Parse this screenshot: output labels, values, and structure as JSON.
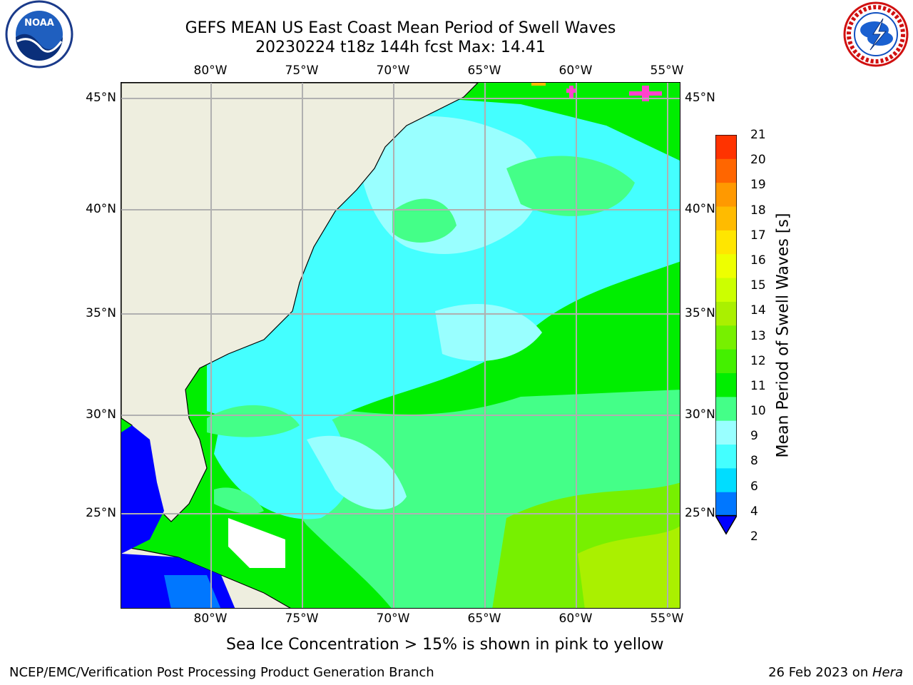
{
  "title_line1": "GEFS MEAN US East Coast Mean Period of Swell Waves",
  "title_line2": "20230224 t18z 144h fcst   Max: 14.41",
  "logos": {
    "left": "noaa-logo",
    "left_text": "NOAA",
    "right": "nws-logo"
  },
  "map": {
    "lon_ticks": [
      "80°W",
      "75°W",
      "70°W",
      "65°W",
      "60°W",
      "55°W"
    ],
    "lat_ticks": [
      "45°N",
      "40°N",
      "35°N",
      "30°N",
      "25°N"
    ],
    "land_color": "#eeeedf",
    "masked_color": "#ffffff",
    "grid_color": "#b0b0b0",
    "region": "US East Coast / western North Atlantic"
  },
  "colorbar": {
    "label": "Mean Period of Swell Waves [s]",
    "ticks": [
      "2",
      "4",
      "6",
      "8",
      "9",
      "10",
      "11",
      "12",
      "13",
      "14",
      "15",
      "16",
      "17",
      "18",
      "19",
      "20",
      "21"
    ],
    "colors": [
      "#0077ff",
      "#00ddff",
      "#44ffff",
      "#99ffff",
      "#44ff88",
      "#00ee00",
      "#44f000",
      "#77f000",
      "#aaf000",
      "#ccff00",
      "#eeff00",
      "#ffe600",
      "#ffbb00",
      "#ff9900",
      "#ff6600",
      "#ff3300",
      "#ff0000"
    ],
    "extend_color": "#0000ff"
  },
  "note": "Sea Ice Concentration > 15% is shown in pink to yellow",
  "footer": {
    "left": "NCEP/EMC/Verification Post Processing Product Generation Branch",
    "date": "26 Feb 2023 on ",
    "host": "Hera"
  }
}
